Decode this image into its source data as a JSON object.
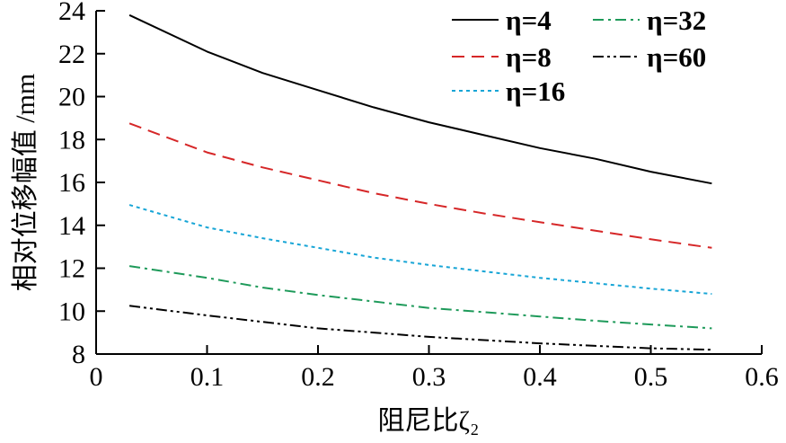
{
  "chart_data": {
    "type": "line",
    "xlabel": "阻尼比ζ₂",
    "ylabel": "相对位移幅值 /mm",
    "xlim": [
      0,
      0.6
    ],
    "ylim": [
      8,
      24
    ],
    "x_ticks": [
      "0",
      "0.1",
      "0.2",
      "0.3",
      "0.4",
      "0.5",
      "0.6"
    ],
    "y_ticks": [
      "8",
      "10",
      "12",
      "14",
      "16",
      "18",
      "20",
      "22",
      "24"
    ],
    "grid": false,
    "legend_position": "top-right",
    "x": [
      0.03,
      0.1,
      0.15,
      0.2,
      0.25,
      0.3,
      0.35,
      0.4,
      0.45,
      0.5,
      0.555
    ],
    "series": [
      {
        "name": "η=4",
        "color": "#000000",
        "dash": "solid",
        "values": [
          23.8,
          22.1,
          21.1,
          20.3,
          19.5,
          18.8,
          18.2,
          17.6,
          17.1,
          16.5,
          15.95
        ]
      },
      {
        "name": "η=8",
        "color": "#d62728",
        "dash": "dashed",
        "values": [
          18.75,
          17.4,
          16.7,
          16.1,
          15.5,
          15.0,
          14.55,
          14.15,
          13.75,
          13.35,
          12.95
        ]
      },
      {
        "name": "η=16",
        "color": "#17a5d6",
        "dash": "dotted",
        "values": [
          14.95,
          13.9,
          13.4,
          12.95,
          12.5,
          12.15,
          11.85,
          11.55,
          11.3,
          11.05,
          10.8
        ]
      },
      {
        "name": "η=32",
        "color": "#1e9a5a",
        "dash": "dashdot",
        "values": [
          12.1,
          11.55,
          11.1,
          10.75,
          10.45,
          10.15,
          9.95,
          9.75,
          9.55,
          9.38,
          9.2
        ]
      },
      {
        "name": "η=60",
        "color": "#000000",
        "dash": "dashdotdot",
        "values": [
          10.25,
          9.8,
          9.5,
          9.2,
          9.0,
          8.8,
          8.65,
          8.5,
          8.38,
          8.27,
          8.2
        ]
      }
    ]
  }
}
